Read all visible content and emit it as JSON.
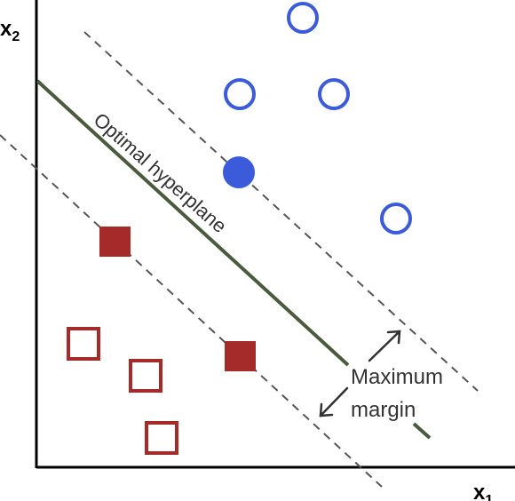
{
  "axes": {
    "x_label": "x",
    "x_sub": "1",
    "y_label": "x",
    "y_sub": "2"
  },
  "labels": {
    "hyperplane": "Optimal hyperplane",
    "margin_line1": "Maximum",
    "margin_line2": "margin"
  },
  "colors": {
    "axis": "#000000",
    "hyperplane": "#4a5a3c",
    "margin_lines": "#555555",
    "class_circle": "#3b5bdb",
    "class_square": "#a52a2a",
    "annotation": "#333333"
  },
  "classes": {
    "circle": {
      "hollow": 4,
      "filled_support_vectors": 1
    },
    "square": {
      "hollow": 3,
      "filled_support_vectors": 2
    }
  }
}
